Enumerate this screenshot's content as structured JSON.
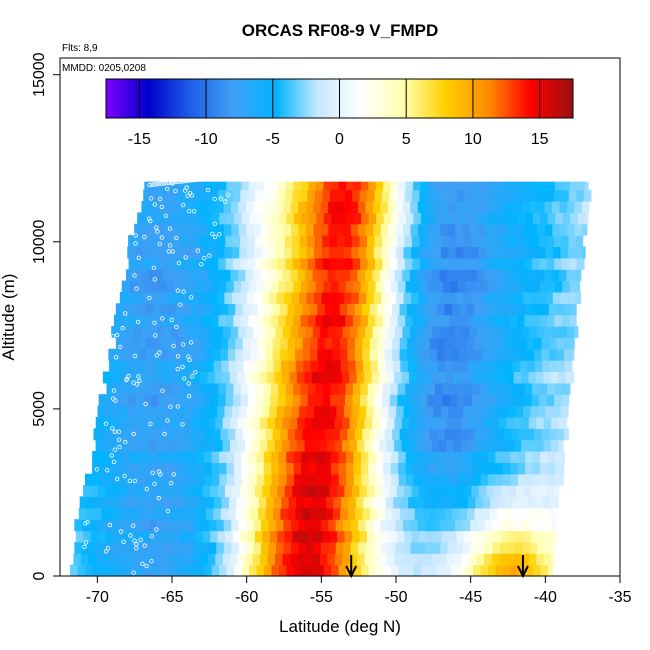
{
  "chart_data": {
    "type": "heatmap",
    "title": "ORCAS RF08-9 V_FMPD",
    "xlabel": "Latitude (deg N)",
    "ylabel": "Altitude (m)",
    "xlim": [
      -72.5,
      -35
    ],
    "ylim": [
      0,
      15500
    ],
    "x_ticks": [
      -70,
      -65,
      -60,
      -55,
      -50,
      -45,
      -40,
      -35
    ],
    "y_ticks": [
      0,
      5000,
      10000,
      15000
    ],
    "notes": [
      "Flts: 8,9",
      "MMDD: 0205,0208"
    ],
    "colorbar": {
      "range": [
        -17.5,
        17.5
      ],
      "ticks": [
        -15,
        -10,
        -5,
        0,
        5,
        10,
        15
      ],
      "colors": [
        "#7f00ff",
        "#0000cc",
        "#1f5fe8",
        "#3fa0f5",
        "#00b4ff",
        "#c8e8ff",
        "#ffffff",
        "#ffffb0",
        "#ffd000",
        "#ff8c00",
        "#ff0000",
        "#9a1010"
      ]
    },
    "arrows_lat": [
      -53,
      -41.5
    ],
    "data_extent": {
      "altitude_max": 11800,
      "lat_left_bottom": -72,
      "lat_left_top": -67,
      "lat_right_bottom": -39.5,
      "lat_right_top": -37
    }
  }
}
